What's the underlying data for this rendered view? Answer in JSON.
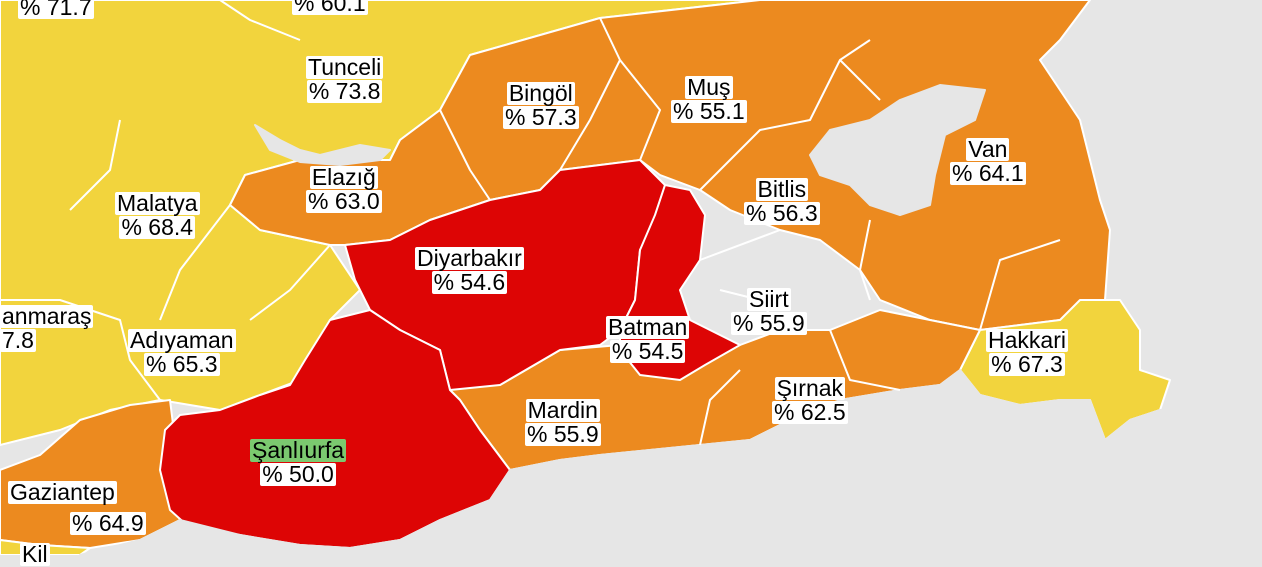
{
  "colors": {
    "background": "#e6e6e6",
    "yellow": "#f2d43d",
    "orange": "#ec8a1f",
    "red": "#dd0505",
    "border": "#ffffff",
    "highlight": "#7bc96f"
  },
  "provinces": {
    "top_left": {
      "value": "% 71.7"
    },
    "top_mid": {
      "value": "% 60.1"
    },
    "tunceli": {
      "name": "Tunceli",
      "value": "% 73.8"
    },
    "bingol": {
      "name": "Bingöl",
      "value": "% 57.3"
    },
    "mus": {
      "name": "Muş",
      "value": "% 55.1"
    },
    "elazig": {
      "name": "Elazığ",
      "value": "% 63.0"
    },
    "van": {
      "name": "Van",
      "value": "% 64.1"
    },
    "malatya": {
      "name": "Malatya",
      "value": "% 68.4"
    },
    "bitlis": {
      "name": "Bitlis",
      "value": "% 56.3"
    },
    "diyarbakir": {
      "name": "Diyarbakır",
      "value": "% 54.6"
    },
    "kahramanmaras": {
      "name": "anmaraş",
      "value": "7.8"
    },
    "siirt": {
      "name": "Siirt",
      "value": "% 55.9"
    },
    "batman": {
      "name": "Batman",
      "value": "% 54.5"
    },
    "adiyaman": {
      "name": "Adıyaman",
      "value": "% 65.3"
    },
    "hakkari": {
      "name": "Hakkari",
      "value": "% 67.3"
    },
    "sirnak": {
      "name": "Şırnak",
      "value": "% 62.5"
    },
    "mardin": {
      "name": "Mardin",
      "value": "% 55.9"
    },
    "sanliurfa": {
      "name": "Şanlıurfa",
      "value": "% 50.0"
    },
    "gaziantep": {
      "name": "Gaziantep",
      "value": "% 64.9"
    },
    "kilis": {
      "name": "Kil"
    }
  }
}
